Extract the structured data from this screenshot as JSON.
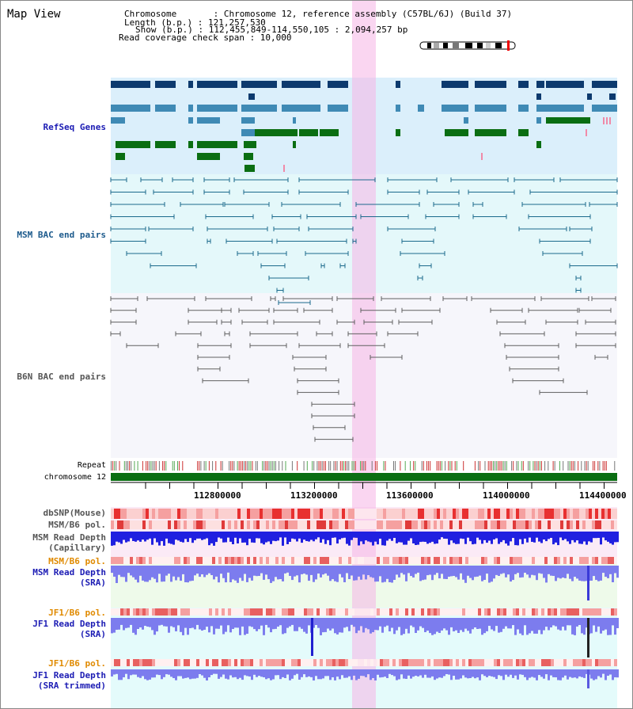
{
  "view": {
    "title": "Map View"
  },
  "header": {
    "chromosome_line": "Chromosome       : Chromosome 12, reference assembly (C57BL/6J) (Build 37)",
    "length_line": "Length (b.p.) : 121,257,530",
    "show_line": "Show (b.p.) : 112,455,849-114,550,105 : 2,094,257 bp",
    "coverage_line": "Read coverage check span : 10,000"
  },
  "tracks": {
    "refseq": {
      "label": "RefSeq Genes",
      "color": "#1c1cb4"
    },
    "msm_bac": {
      "label": "MSM BAC end pairs",
      "color": "#1c5a8c"
    },
    "b6n_bac": {
      "label": "B6N BAC end pairs",
      "color": "#555555"
    },
    "repeat": {
      "label": "Repeat"
    },
    "chromosome": {
      "label": "chromosome 12"
    },
    "dbsnp": {
      "label": "dbSNP(Mouse)"
    },
    "msm_b6_pol": {
      "label": "MSM/B6 pol."
    },
    "msm_depth_cap": {
      "label_1": "MSM Read Depth",
      "label_2": "(Capillary)"
    },
    "msm_b6_pol_2": {
      "label": "MSM/B6 pol.",
      "color": "#e08a00"
    },
    "msm_depth_sra": {
      "label_1": "MSM Read Depth",
      "label_2": "(SRA)",
      "color": "#1c1cb4"
    },
    "jf1_b6_pol": {
      "label": "JF1/B6 pol.",
      "color": "#e08a00"
    },
    "jf1_depth_sra": {
      "label_1": "JF1 Read Depth",
      "label_2": "(SRA)",
      "color": "#1c1cb4"
    },
    "jf1_b6_pol_2": {
      "label": "JF1/B6 pol.",
      "color": "#e08a00"
    },
    "jf1_depth_trim": {
      "label_1": "JF1 Read Depth",
      "label_2": "(SRA trimmed)",
      "color": "#1c1cb4"
    }
  },
  "axis": {
    "ticks": [
      "112800000",
      "113200000",
      "113600000",
      "114000000",
      "114400000"
    ]
  },
  "colors": {
    "refseq_dark": "#0d3a6e",
    "refseq_mid": "#3f8ab5",
    "refseq_green": "#0a6e12",
    "bac_blue": "#1c6a8c",
    "b6n_gray": "#606060",
    "highlight": "#f6b4e6",
    "depth_blue": "#2020e0",
    "depth_light": "#7777ee"
  }
}
